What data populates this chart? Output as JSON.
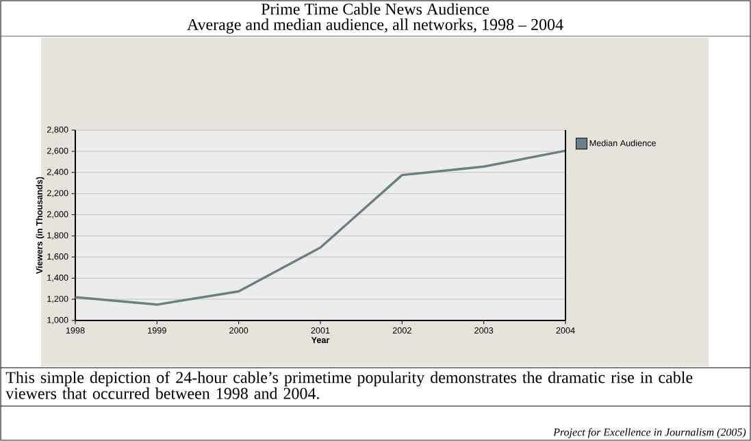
{
  "chart_data": {
    "type": "line",
    "title": "Prime Time Cable News Audience",
    "subtitle": "Average and median audience, all networks, 1998 – 2004",
    "xlabel": "Year",
    "ylabel": "Viewers (in Thousands)",
    "x": [
      1998,
      1999,
      2000,
      2001,
      2002,
      2003,
      2004
    ],
    "series": [
      {
        "name": "Median Audience",
        "color": "#6e7f84",
        "values": [
          1220,
          1150,
          1275,
          1690,
          2375,
          2455,
          2605
        ]
      }
    ],
    "xlim": [
      1998,
      2004
    ],
    "xticks": [
      1998,
      1999,
      2000,
      2001,
      2002,
      2003,
      2004
    ],
    "ylim": [
      1000,
      2800
    ],
    "yticks": [
      {
        "value": 1000,
        "label": "1,000"
      },
      {
        "value": 1200,
        "label": "1,200"
      },
      {
        "value": 1400,
        "label": "1,400"
      },
      {
        "value": 1600,
        "label": "1,600"
      },
      {
        "value": 1800,
        "label": "1,800"
      },
      {
        "value": 2000,
        "label": "2,000"
      },
      {
        "value": 2200,
        "label": "2,200"
      },
      {
        "value": 2400,
        "label": "2,400"
      },
      {
        "value": 2600,
        "label": "2,600"
      },
      {
        "value": 2800,
        "label": "2,800"
      }
    ],
    "grid": "y",
    "legend": "right",
    "marker": "none",
    "line_style": "solid",
    "annotations": [
      "This simple depiction of 24-hour cable’s primetime popularity demonstrates the dramatic rise in cable viewers that occurred between 1998 and 2004.",
      "*Project for Excellence in Journalism (2005)*"
    ]
  }
}
